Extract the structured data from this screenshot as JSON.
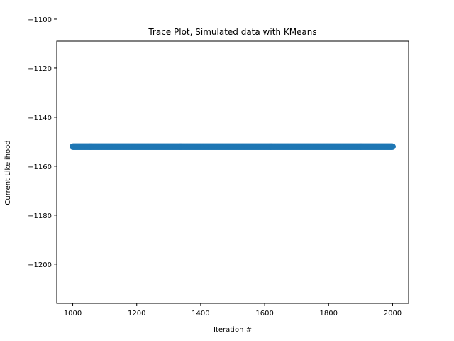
{
  "chart_data": {
    "type": "scatter",
    "title": "Trace Plot, Simulated data with KMeans",
    "xlabel": "Iteration #",
    "ylabel": "Current Likelihood",
    "xlim": [
      950,
      2050
    ],
    "ylim": [
      -1216,
      -1109
    ],
    "xticks": [
      1000,
      1200,
      1400,
      1600,
      1800,
      2000
    ],
    "yticks": [
      -1100,
      -1120,
      -1140,
      -1160,
      -1180,
      -1200
    ],
    "xtick_labels": [
      "1000",
      "1200",
      "1400",
      "1600",
      "1800",
      "2000"
    ],
    "ytick_labels": [
      "−1100",
      "−1120",
      "−1140",
      "−1160",
      "−1180",
      "−1200"
    ],
    "series": [
      {
        "x_start": 1000,
        "x_end": 2000,
        "x_step": 1,
        "y": -1152,
        "color": "#1f77b4"
      }
    ],
    "grid": false
  }
}
